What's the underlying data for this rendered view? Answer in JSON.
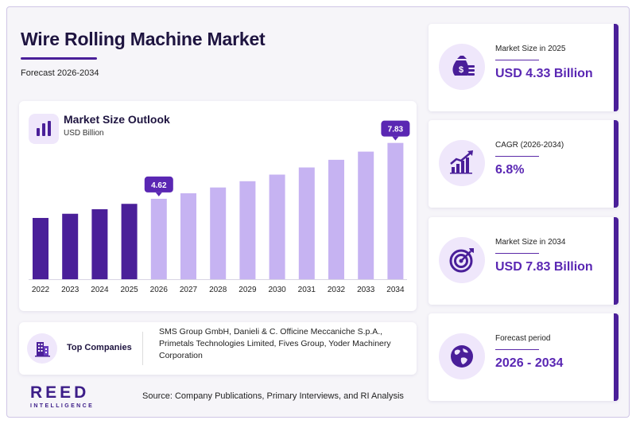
{
  "header": {
    "title": "Wire Rolling Machine Market",
    "subtitle": "Forecast 2026-2034"
  },
  "chart_data": {
    "type": "bar",
    "title": "Market Size Outlook",
    "unit_label": "USD Billion",
    "categories": [
      "2022",
      "2023",
      "2024",
      "2025",
      "2026",
      "2027",
      "2028",
      "2029",
      "2030",
      "2031",
      "2032",
      "2033",
      "2034"
    ],
    "values": [
      3.52,
      3.76,
      4.02,
      4.33,
      4.62,
      4.94,
      5.27,
      5.63,
      6.01,
      6.42,
      6.86,
      7.33,
      7.83
    ],
    "data_labels": [
      {
        "category": "2026",
        "text": "4.62"
      },
      {
        "category": "2034",
        "text": "7.83"
      }
    ],
    "ylim": [
      0,
      8.5
    ],
    "grid": false,
    "historical_color": "#4a1f99",
    "forecast_color": "#c6b3f2",
    "label_bg": "#5a27b3"
  },
  "top_companies": {
    "label": "Top Companies",
    "text": "SMS Group GmbH, Danieli & C. Officine Meccaniche S.p.A., Primetals Technologies Limited, Fives Group, Yoder Machinery Corporation"
  },
  "stats": [
    {
      "label": "Market Size in 2025",
      "value": "USD 4.33 Billion",
      "icon": "money-bag-icon"
    },
    {
      "label": "CAGR (2026-2034)",
      "value": "6.8%",
      "icon": "growth-chart-icon"
    },
    {
      "label": "Market Size in 2034",
      "value": "USD 7.83 Billion",
      "icon": "target-icon"
    },
    {
      "label": "Forecast period",
      "value": "2026 - 2034",
      "icon": "globe-icon"
    }
  ],
  "logo": {
    "main": "REED",
    "sub": "INTELLIGENCE"
  },
  "source": "Source: Company Publications, Primary Interviews, and RI Analysis"
}
